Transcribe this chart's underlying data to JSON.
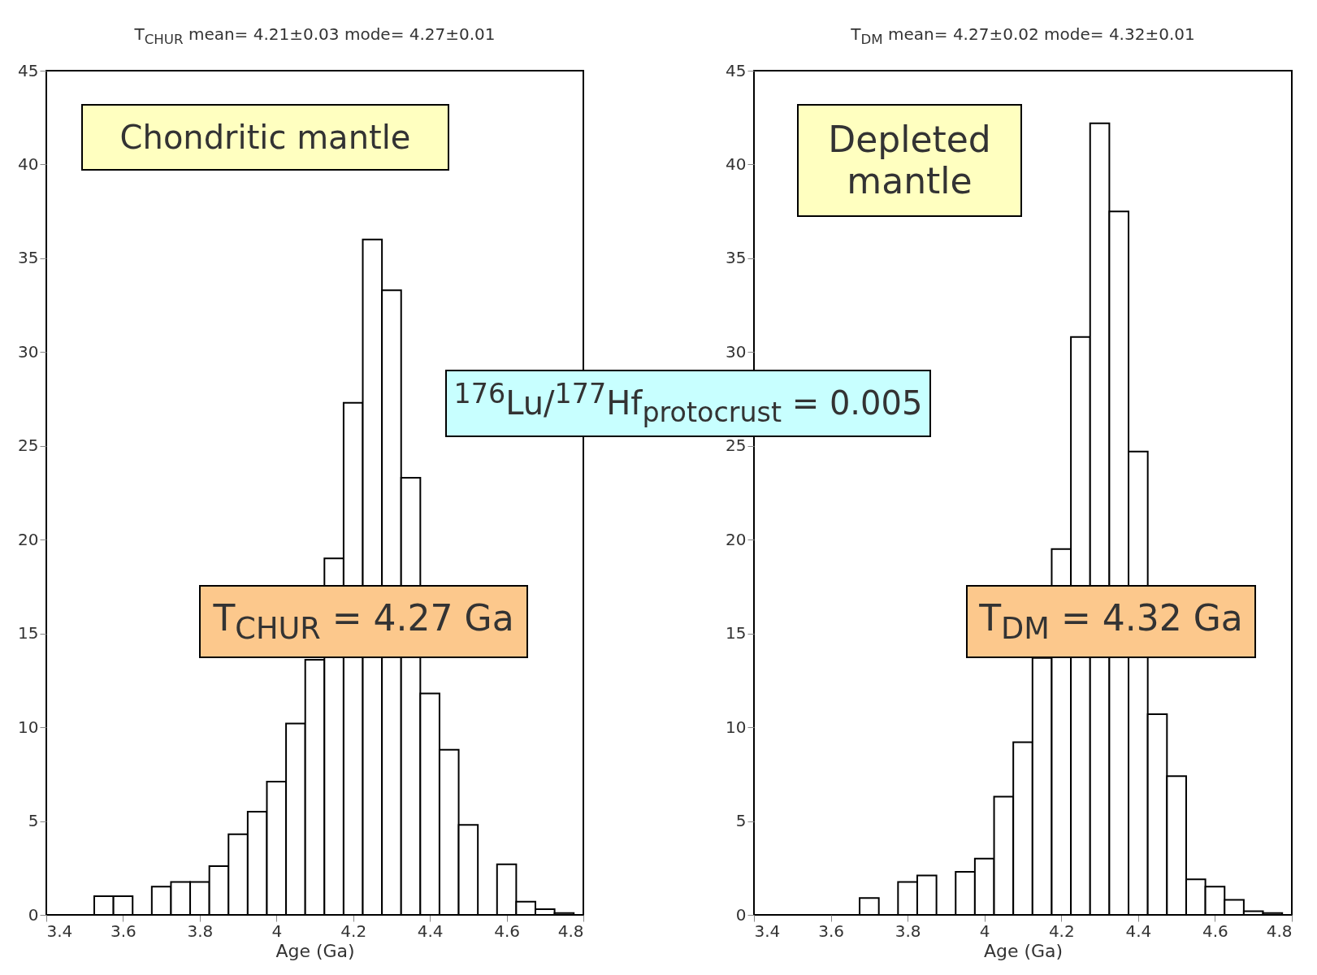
{
  "chart_data": [
    {
      "type": "histogram",
      "title": "T$_{CHUR}$ mean= 4.21±0.03 mode= 4.27±0.01",
      "xlabel": "Age (Ga)",
      "bins": [
        3.525,
        3.575,
        3.625,
        3.675,
        3.725,
        3.775,
        3.825,
        3.875,
        3.925,
        3.975,
        4.025,
        4.075,
        4.125,
        4.175,
        4.225,
        4.275,
        4.325,
        4.375,
        4.425,
        4.475,
        4.525,
        4.575,
        4.625,
        4.675,
        4.725,
        4.775
      ],
      "values": [
        1.0,
        1.0,
        null,
        1.5,
        1.75,
        1.75,
        2.6,
        4.3,
        5.5,
        7.1,
        10.2,
        13.6,
        19,
        27.3,
        36,
        33.3,
        23.3,
        11.8,
        8.8,
        4.8,
        null,
        2.7,
        0.7,
        0.3,
        0.1
      ],
      "color": "#ffffff",
      "xlim": [
        3.4,
        4.8
      ],
      "xticks": [
        3.4,
        3.6,
        3.8,
        4,
        4.2,
        4.4,
        4.6,
        4.8
      ],
      "ylim": [
        0,
        45
      ],
      "yticks": [
        0,
        5,
        10,
        15,
        20,
        25,
        30,
        35,
        40,
        45
      ],
      "grid": false,
      "annotations": [
        "Chondritic mantle",
        "T$_{CHUR}$ = 4.27 Ga",
        "$^{176}$Lu/$^{177}$Hf$_{protocrust}$ = 0.005"
      ]
    },
    {
      "type": "histogram",
      "title": "T$_{DM}$ mean= 4.27±0.02 mode= 4.32±0.01",
      "xlabel": "Age (Ga)",
      "bins": [
        3.675,
        3.725,
        3.775,
        3.825,
        3.875,
        3.925,
        3.975,
        4.025,
        4.075,
        4.125,
        4.175,
        4.225,
        4.275,
        4.325,
        4.375,
        4.425,
        4.475,
        4.525,
        4.575,
        4.625,
        4.675,
        4.725,
        4.775
      ],
      "values": [
        0.9,
        null,
        1.75,
        2.1,
        null,
        2.3,
        3.0,
        6.3,
        9.2,
        13.7,
        19.5,
        30.8,
        42.2,
        37.5,
        24.7,
        10.7,
        7.4,
        1.9,
        1.5,
        0.8,
        0.2,
        0.1
      ],
      "color": "#ffffff",
      "xlim": [
        3.4,
        4.8
      ],
      "xticks": [
        3.4,
        3.6,
        3.8,
        4,
        4.2,
        4.4,
        4.6,
        4.8
      ],
      "ylim": [
        0,
        45
      ],
      "yticks": [
        0,
        5,
        10,
        15,
        20,
        25,
        30,
        35,
        40,
        45
      ],
      "grid": false,
      "annotations": [
        "Depleted mantle",
        "T$_{DM}$ = 4.32 Ga"
      ]
    }
  ]
}
